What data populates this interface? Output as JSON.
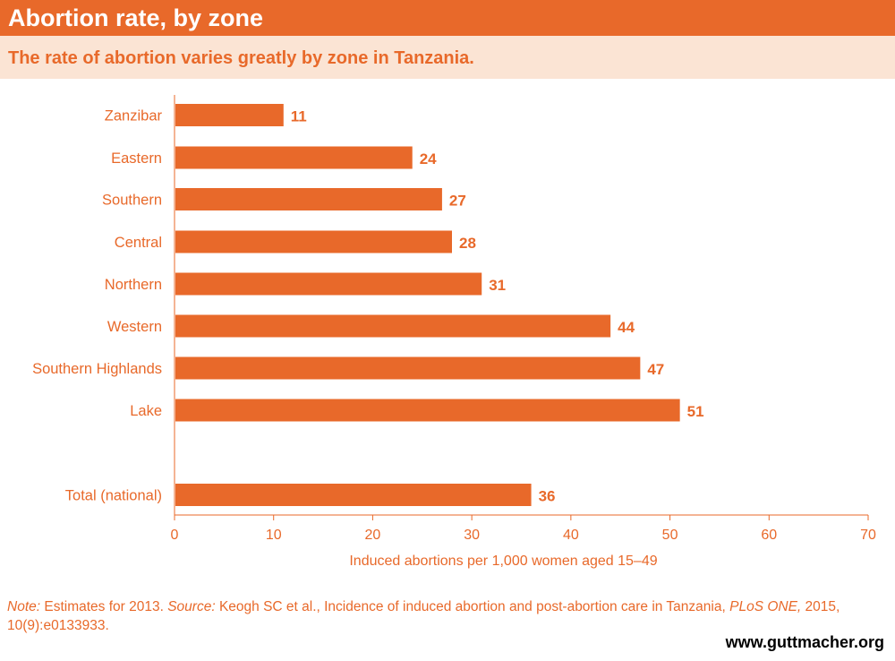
{
  "header": {
    "title": "Abortion rate, by zone",
    "subtitle": "The rate of abortion varies greatly by zone in Tanzania."
  },
  "colors": {
    "accent": "#e8692a",
    "subtitle_bg": "#fbe4d4",
    "bar": "#e8692a",
    "text": "#e8692a"
  },
  "chart_data": {
    "type": "bar",
    "orientation": "horizontal",
    "categories": [
      "Zanzibar",
      "Eastern",
      "Southern",
      "Central",
      "Northern",
      "Western",
      "Southern Highlands",
      "Lake",
      "Total (national)"
    ],
    "values": [
      11,
      24,
      27,
      28,
      31,
      44,
      47,
      51,
      36
    ],
    "data_labels": [
      "11",
      "24",
      "27",
      "28",
      "31",
      "44",
      "47",
      "51",
      "36"
    ],
    "xlabel": "Induced abortions per 1,000 women aged 15–49",
    "ylabel": "",
    "xlim": [
      0,
      70
    ],
    "xticks": [
      "0",
      "10",
      "20",
      "30",
      "40",
      "50",
      "60",
      "70"
    ],
    "grid": false,
    "legend": "none"
  },
  "footer": {
    "note_label": "Note:",
    "note_text": " Estimates for 2013. ",
    "source_label": "Source:",
    "source_text": " Keogh SC et al., Incidence of induced abortion and post-abortion care in Tanzania, ",
    "journal": "PLoS ONE,",
    "citation": " 2015, 10(9):e0133933.",
    "website": "www.guttmacher.org"
  }
}
